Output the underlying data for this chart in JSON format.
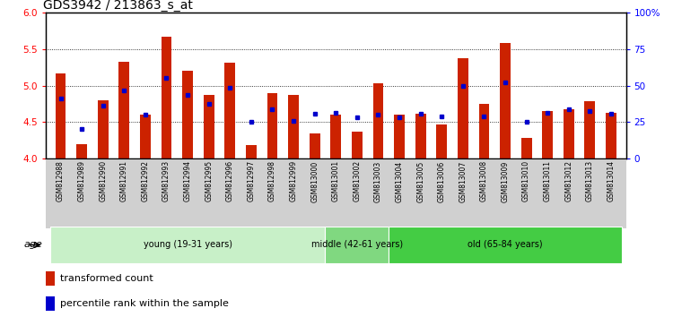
{
  "title": "GDS3942 / 213863_s_at",
  "samples": [
    "GSM812988",
    "GSM812989",
    "GSM812990",
    "GSM812991",
    "GSM812992",
    "GSM812993",
    "GSM812994",
    "GSM812995",
    "GSM812996",
    "GSM812997",
    "GSM812998",
    "GSM812999",
    "GSM813000",
    "GSM813001",
    "GSM813002",
    "GSM813003",
    "GSM813004",
    "GSM813005",
    "GSM813006",
    "GSM813007",
    "GSM813008",
    "GSM813009",
    "GSM813010",
    "GSM813011",
    "GSM813012",
    "GSM813013",
    "GSM813014"
  ],
  "red_values": [
    5.17,
    4.2,
    4.8,
    5.33,
    4.6,
    5.67,
    5.2,
    4.87,
    5.32,
    4.18,
    4.9,
    4.87,
    4.35,
    4.6,
    4.37,
    5.03,
    4.6,
    4.62,
    4.47,
    5.38,
    4.75,
    5.58,
    4.28,
    4.65,
    4.68,
    4.78,
    4.63
  ],
  "blue_values": [
    4.82,
    4.4,
    4.72,
    4.93,
    4.6,
    5.1,
    4.87,
    4.75,
    4.97,
    4.5,
    4.67,
    4.52,
    4.62,
    4.63,
    4.57,
    4.6,
    4.57,
    4.62,
    4.58,
    5.0,
    4.58,
    5.04,
    4.5,
    4.63,
    4.67,
    4.65,
    4.62
  ],
  "ylim": [
    4.0,
    6.0
  ],
  "yticks": [
    4.0,
    4.5,
    5.0,
    5.5,
    6.0
  ],
  "y2lim": [
    0,
    100
  ],
  "y2ticks": [
    0,
    25,
    50,
    75,
    100
  ],
  "y2labels": [
    "0",
    "25",
    "50",
    "75",
    "100%"
  ],
  "groups": [
    {
      "label": "young (19-31 years)",
      "start": 0,
      "end": 13,
      "color": "#c8f0c8"
    },
    {
      "label": "middle (42-61 years)",
      "start": 13,
      "end": 16,
      "color": "#80d880"
    },
    {
      "label": "old (65-84 years)",
      "start": 16,
      "end": 27,
      "color": "#44cc44"
    }
  ],
  "bar_color": "#cc2200",
  "dot_color": "#0000cc",
  "bar_width": 0.5,
  "title_fontsize": 10,
  "tick_fontsize": 7.5,
  "label_fontsize": 8,
  "age_label": "age",
  "legend1": "transformed count",
  "legend2": "percentile rank within the sample",
  "xticklabel_bg": "#d0d0d0",
  "baseline": 4.0
}
